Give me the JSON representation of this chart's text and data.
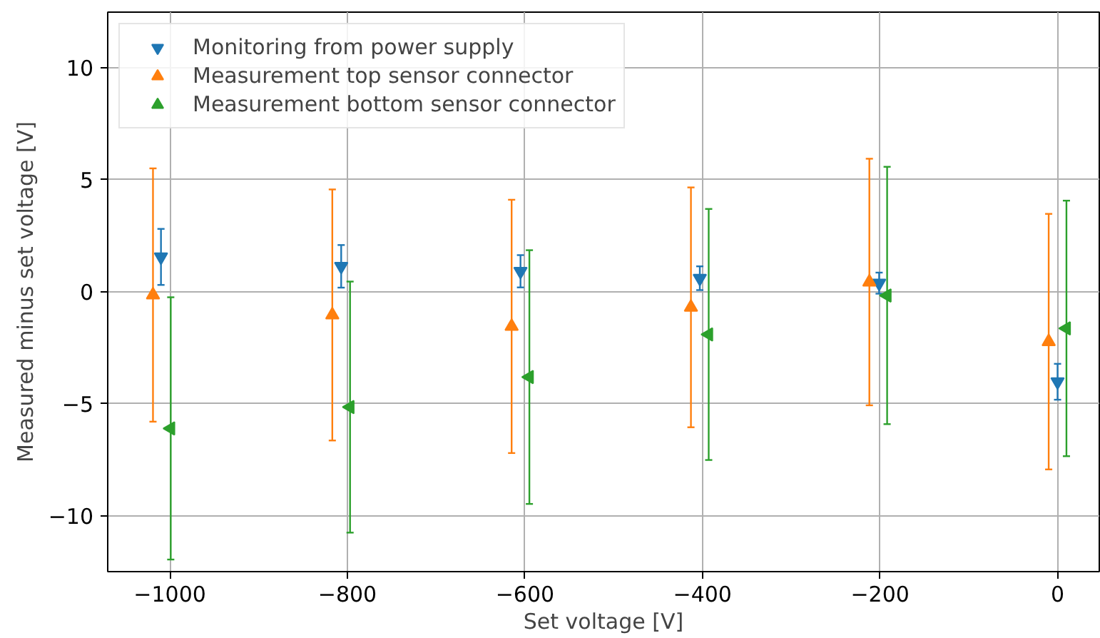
{
  "chart_data": {
    "type": "scatter",
    "xlabel": "Set voltage [V]",
    "ylabel": "Measured minus set voltage [V]",
    "xlim": [
      -1070,
      47
    ],
    "ylim": [
      -12.49,
      12.47
    ],
    "xticks": [
      {
        "value": -1000,
        "label": "−1000"
      },
      {
        "value": -800,
        "label": "−800"
      },
      {
        "value": -600,
        "label": "−600"
      },
      {
        "value": -400,
        "label": "−400"
      },
      {
        "value": -200,
        "label": "−200"
      },
      0
    ],
    "yticks": [
      {
        "value": -10,
        "label": "−10"
      },
      {
        "value": -5,
        "label": "−5"
      },
      0,
      5,
      10
    ],
    "grid": true,
    "legend": "top left",
    "series": [
      {
        "name": "Monitoring from power supply",
        "color": "#1f77b4",
        "marker": "triangle_down",
        "x": [
          -1010,
          -807,
          -605,
          -403,
          -201,
          0
        ],
        "values": [
          1.55,
          1.13,
          0.91,
          0.6,
          0.38,
          -4.02
        ],
        "errors": [
          1.25,
          0.95,
          0.72,
          0.53,
          0.47,
          0.8
        ]
      },
      {
        "name": "Measurement top sensor connector",
        "color": "#ff7f0e",
        "marker": "triangle",
        "x": [
          -1019,
          -817,
          -615,
          -413,
          -212,
          -10
        ],
        "values": [
          -0.15,
          -1.04,
          -1.55,
          -0.7,
          0.43,
          -2.23
        ],
        "errors": [
          5.65,
          5.6,
          5.65,
          5.35,
          5.5,
          5.7
        ]
      },
      {
        "name": "Measurement bottom sensor connector",
        "color": "#2ca02c",
        "marker": "triangle_left",
        "x": [
          -999,
          -797,
          -595,
          -393,
          -192,
          10
        ],
        "values": [
          -6.1,
          -5.15,
          -3.81,
          -1.91,
          -0.17,
          -1.64
        ],
        "errors": [
          5.85,
          5.6,
          5.66,
          5.6,
          5.74,
          5.7
        ]
      }
    ]
  }
}
